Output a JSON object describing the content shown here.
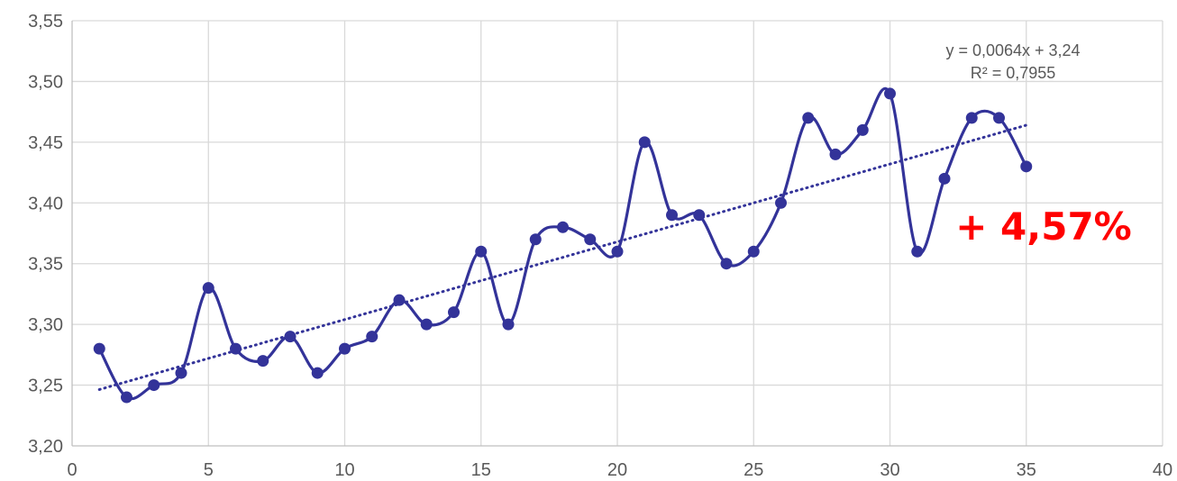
{
  "chart_data": {
    "type": "line",
    "title": "",
    "xlabel": "",
    "ylabel": "",
    "xlim": [
      0,
      40
    ],
    "ylim": [
      3.2,
      3.55
    ],
    "x_ticks": [
      0,
      5,
      10,
      15,
      20,
      25,
      30,
      35,
      40
    ],
    "x_tick_labels": [
      "0",
      "5",
      "10",
      "15",
      "20",
      "25",
      "30",
      "35",
      "40"
    ],
    "y_ticks": [
      3.2,
      3.25,
      3.3,
      3.35,
      3.4,
      3.45,
      3.5,
      3.55
    ],
    "y_tick_labels": [
      "3,20",
      "3,25",
      "3,30",
      "3,35",
      "3,40",
      "3,45",
      "3,50",
      "3,55"
    ],
    "grid": true,
    "legend": "none",
    "series": [
      {
        "color": "#333399",
        "smooth": true,
        "markers": true,
        "x": [
          1,
          2,
          3,
          4,
          5,
          6,
          7,
          8,
          9,
          10,
          11,
          12,
          13,
          14,
          15,
          16,
          17,
          18,
          19,
          20,
          21,
          22,
          23,
          24,
          25,
          26,
          27,
          28,
          29,
          30,
          31,
          32,
          33,
          34,
          35
        ],
        "y": [
          3.28,
          3.24,
          3.25,
          3.26,
          3.33,
          3.28,
          3.27,
          3.29,
          3.26,
          3.28,
          3.29,
          3.32,
          3.3,
          3.31,
          3.36,
          3.3,
          3.37,
          3.38,
          3.37,
          3.36,
          3.45,
          3.39,
          3.39,
          3.35,
          3.36,
          3.4,
          3.47,
          3.44,
          3.46,
          3.49,
          3.36,
          3.42,
          3.47,
          3.47,
          3.43
        ]
      }
    ],
    "trendline": {
      "type": "linear",
      "slope": 0.0064,
      "intercept": 3.24,
      "x_range": [
        1,
        35
      ],
      "color": "#333399",
      "style": "dotted",
      "equation_label": "y = 0,0064x + 3,24",
      "r2_label": "R² = 0,7955"
    },
    "annotations": [
      {
        "text": "+ 4,57%",
        "color": "#ff0000"
      }
    ]
  }
}
